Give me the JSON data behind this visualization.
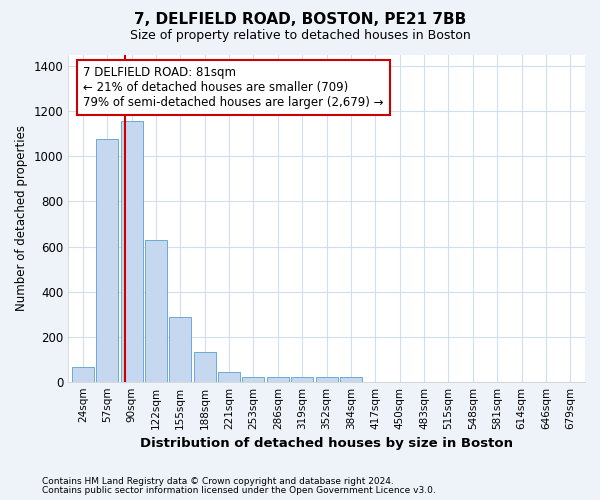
{
  "title": "7, DELFIELD ROAD, BOSTON, PE21 7BB",
  "subtitle": "Size of property relative to detached houses in Boston",
  "xlabel": "Distribution of detached houses by size in Boston",
  "ylabel": "Number of detached properties",
  "bar_labels": [
    "24sqm",
    "57sqm",
    "90sqm",
    "122sqm",
    "155sqm",
    "188sqm",
    "221sqm",
    "253sqm",
    "286sqm",
    "319sqm",
    "352sqm",
    "384sqm",
    "417sqm",
    "450sqm",
    "483sqm",
    "515sqm",
    "548sqm",
    "581sqm",
    "614sqm",
    "646sqm",
    "679sqm"
  ],
  "bar_values": [
    65,
    1075,
    1155,
    630,
    285,
    130,
    45,
    22,
    22,
    22,
    22,
    22,
    0,
    0,
    0,
    0,
    0,
    0,
    0,
    0,
    0
  ],
  "bar_color": "#c5d8f0",
  "bar_edge_color": "#6aaad4",
  "background_color": "#eef3fa",
  "plot_bg_color": "#ffffff",
  "grid_color": "#d0dff0",
  "property_label": "7 DELFIELD ROAD: 81sqm",
  "annotation_line1": "← 21% of detached houses are smaller (709)",
  "annotation_line2": "79% of semi-detached houses are larger (2,679) →",
  "red_line_color": "#cc0000",
  "annotation_box_facecolor": "#ffffff",
  "annotation_border_color": "#cc0000",
  "ylim": [
    0,
    1450
  ],
  "yticks": [
    0,
    200,
    400,
    600,
    800,
    1000,
    1200,
    1400
  ],
  "red_line_x": 1.73,
  "footnote1": "Contains HM Land Registry data © Crown copyright and database right 2024.",
  "footnote2": "Contains public sector information licensed under the Open Government Licence v3.0."
}
